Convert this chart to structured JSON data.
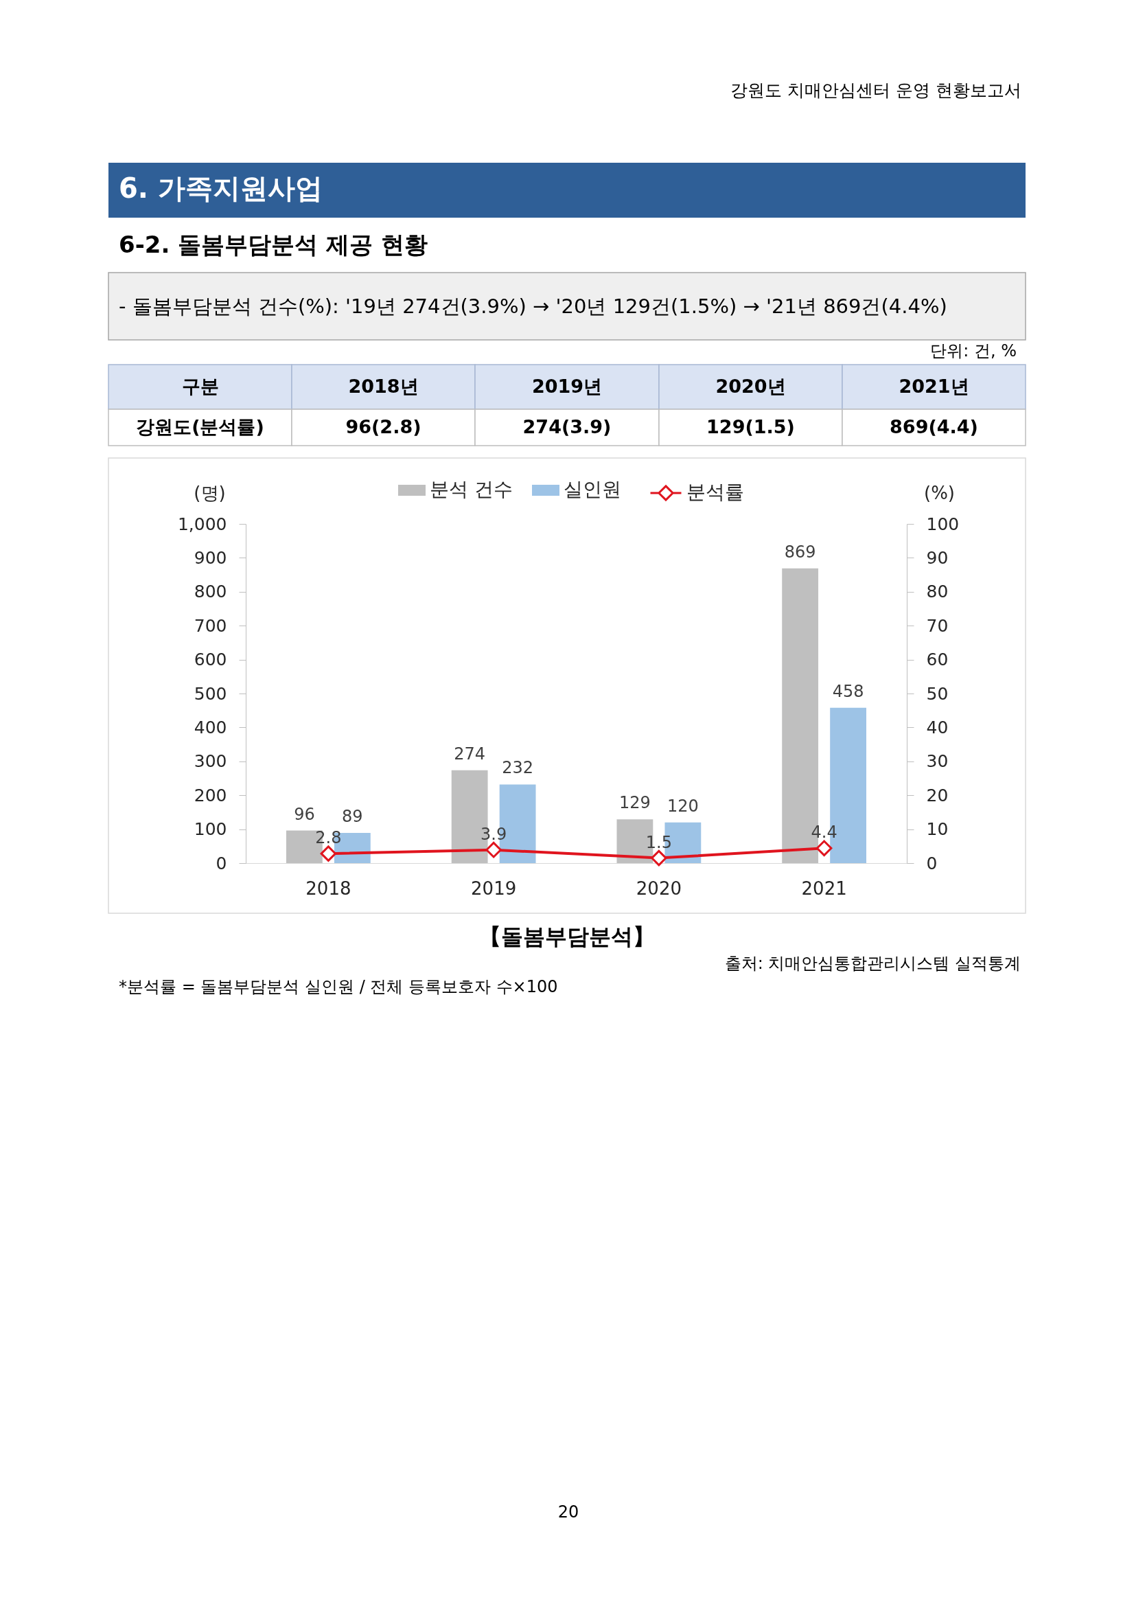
{
  "chart_data": {
    "type": "bar",
    "title": "【돌봄부담분석】",
    "ylabel": "(명)",
    "y2label": "(%)",
    "categories": [
      "2018",
      "2019",
      "2020",
      "2021"
    ],
    "series": [
      {
        "name": "분석 건수",
        "color": "#bfbfbf",
        "values": [
          96,
          274,
          129,
          869
        ]
      },
      {
        "name": "실인원",
        "color": "#9dc3e6",
        "values": [
          89,
          232,
          120,
          458
        ]
      },
      {
        "name": "분석률",
        "type": "line",
        "axis": "y2",
        "color": "#e0141e",
        "values": [
          2.8,
          3.9,
          1.5,
          4.4
        ]
      }
    ],
    "ylim": [
      0,
      1000
    ],
    "yticks": [
      0,
      100,
      200,
      300,
      400,
      500,
      600,
      700,
      800,
      900,
      {
        "value": 1000,
        "label": "1,000"
      }
    ],
    "y2lim": [
      0,
      100
    ],
    "y2ticks": [
      0,
      10,
      20,
      30,
      40,
      50,
      60,
      70,
      80,
      90,
      100
    ],
    "data_labels": true,
    "legend": "top",
    "grid": false,
    "marker": "diamond",
    "line_style": "solid",
    "annotations": [
      "강원도 치매안심센터 운영 현황보고서",
      "6. 가족지원사업",
      "6-2. 돌봄부담분석 제공 현황",
      "- 돌봄부담분석 건수(%): '19년 274건(3.9%) → '20년 129건(1.5%) → '21년 869건(4.4%)",
      "단위: 건, %",
      "구분",
      "2018년",
      "2019년",
      "2020년",
      "2021년",
      "강원도(분석률)",
      "96(2.8)",
      "274(3.9)",
      "129(1.5)",
      "869(4.4)",
      "출처: 치매안심통합관리시스템 실적통계",
      "*분석률 = 돌봄부담분석 실인원 / 전체 등록보호자 수×100",
      "20"
    ]
  }
}
